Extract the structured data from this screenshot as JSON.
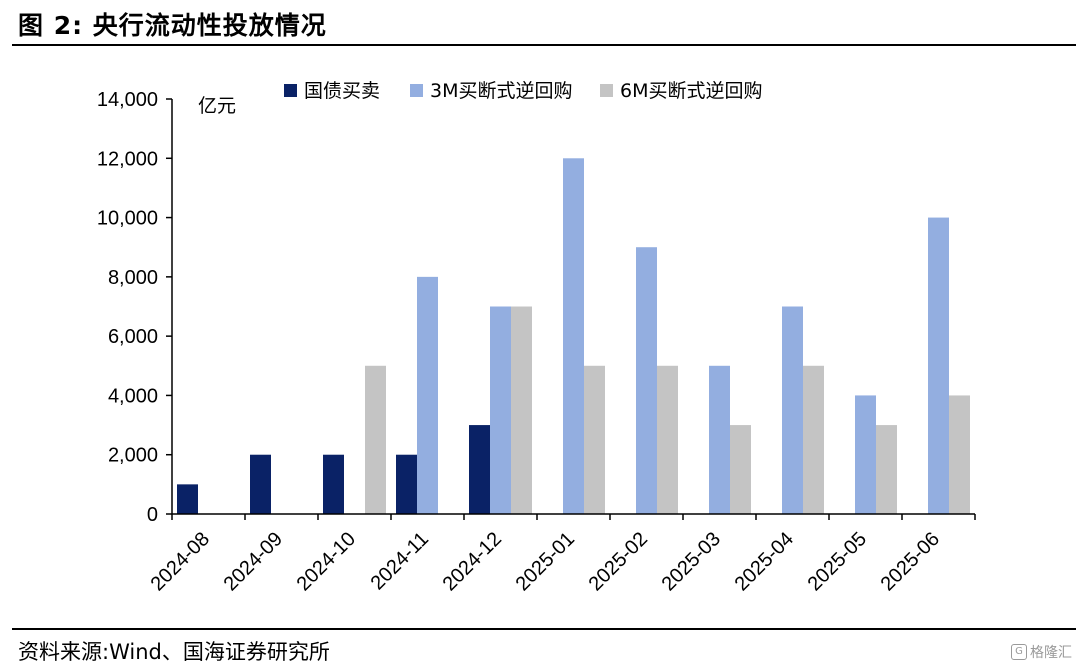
{
  "figure": {
    "title": "图 2:  央行流动性投放情况",
    "source": "资料来源:Wind、国海证券研究所",
    "watermark": "格隆汇"
  },
  "chart_data": {
    "type": "bar",
    "unit_label": "亿元",
    "categories": [
      "2024-08",
      "2024-09",
      "2024-10",
      "2024-11",
      "2024-12",
      "2025-01",
      "2025-02",
      "2025-03",
      "2025-04",
      "2025-05",
      "2025-06"
    ],
    "series": [
      {
        "name": "国债买卖",
        "color": "#0a2266",
        "values": [
          1000,
          2000,
          2000,
          2000,
          3000,
          null,
          null,
          null,
          null,
          null,
          null
        ]
      },
      {
        "name": "3M买断式逆回购",
        "color": "#93aee0",
        "values": [
          null,
          null,
          null,
          8000,
          7000,
          12000,
          9000,
          5000,
          7000,
          4000,
          10000
        ]
      },
      {
        "name": "6M买断式逆回购",
        "color": "#c4c4c4",
        "values": [
          null,
          null,
          5000,
          null,
          7000,
          5000,
          5000,
          3000,
          5000,
          3000,
          4000
        ]
      }
    ],
    "ylim": [
      0,
      14000
    ],
    "yticks": [
      0,
      2000,
      4000,
      6000,
      8000,
      10000,
      12000,
      14000
    ],
    "ytick_labels": [
      "0",
      "2,000",
      "4,000",
      "6,000",
      "8,000",
      "10,000",
      "12,000",
      "14,000"
    ],
    "legend_position": "top",
    "grid": false
  }
}
